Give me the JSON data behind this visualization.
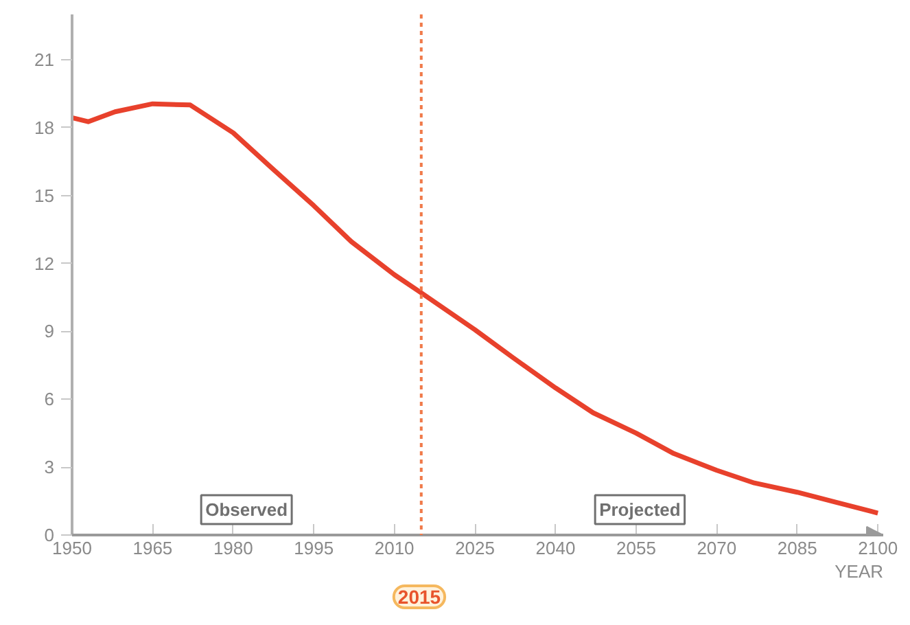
{
  "chart_data": {
    "type": "line",
    "xlabel": "YEAR",
    "x": [
      1950,
      1953,
      1958,
      1965,
      1972,
      1980,
      1987,
      1995,
      2002,
      2010,
      2015,
      2025,
      2032,
      2040,
      2047,
      2055,
      2062,
      2070,
      2077,
      2085,
      2092,
      2100
    ],
    "series": [
      {
        "color": "#e8412c",
        "values": [
          18.44,
          18.26,
          18.7,
          19.05,
          19.0,
          17.77,
          16.25,
          14.55,
          12.96,
          11.5,
          10.7,
          9.07,
          7.85,
          6.5,
          5.4,
          4.5,
          3.6,
          2.86,
          2.3,
          1.89,
          1.46,
          0.97
        ]
      }
    ],
    "xlim": [
      1950,
      2101
    ],
    "ylim": [
      0,
      23
    ],
    "xticks": [
      1950,
      1965,
      1980,
      1995,
      2010,
      2025,
      2040,
      2055,
      2070,
      2085,
      2100
    ],
    "yticks": [
      0,
      3,
      6,
      9,
      12,
      15,
      18,
      21
    ],
    "ref_lines": [
      {
        "axis": "x",
        "value": 2015,
        "label": "2015",
        "color": "#f07a4a",
        "line_style": "dotted"
      }
    ],
    "annotations": [
      "Observed",
      "Projected"
    ],
    "grid": false,
    "marker": "none",
    "line_style": "solid"
  }
}
